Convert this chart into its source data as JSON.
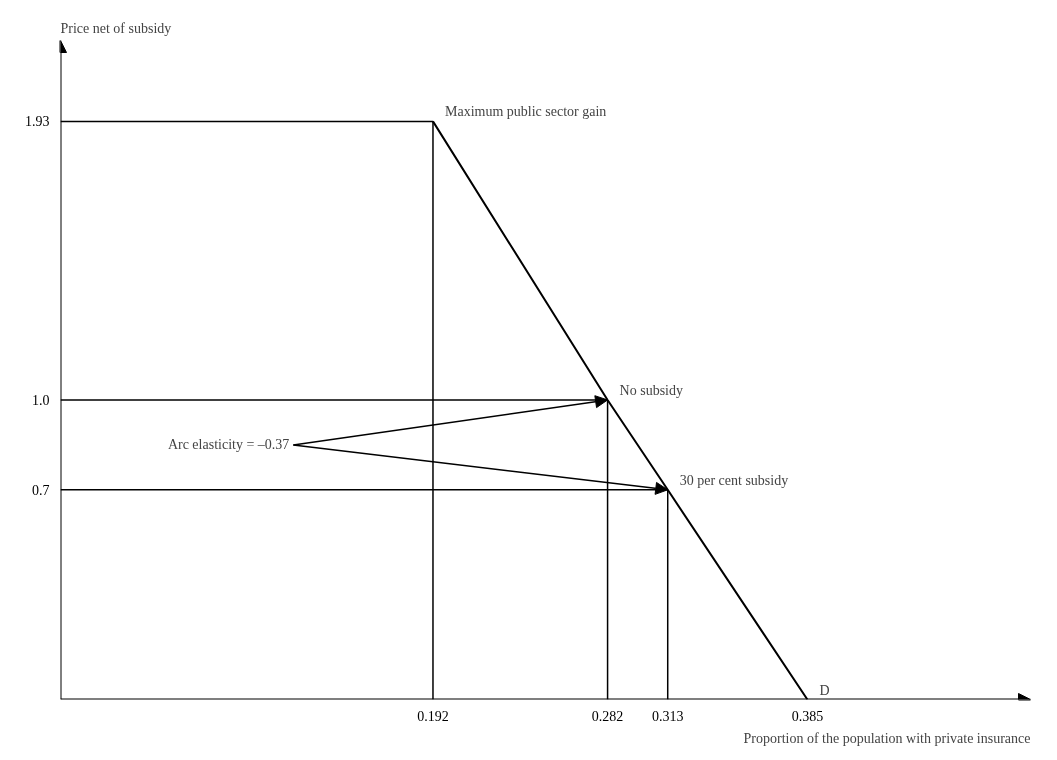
{
  "chart_data": {
    "type": "line",
    "xlabel": "Proportion of the population with private insurance",
    "ylabel": "Price net of subsidy",
    "x": [
      0.192,
      0.282,
      0.313,
      0.385
    ],
    "series": [
      {
        "color": "#000000",
        "values": [
          1.93,
          1.0,
          0.7,
          0
        ]
      }
    ],
    "xlim": [
      0,
      0.5
    ],
    "ylim": [
      0,
      2.2
    ],
    "xticks": [
      0.192,
      0.282,
      0.313,
      0.385
    ],
    "yticks": [
      1.93,
      "1.0",
      0.7
    ],
    "annotations": [
      {
        "text": "Maximum public sector gain",
        "x": 0.192,
        "y": 1.93
      },
      {
        "text": "No subsidy",
        "x": 0.282,
        "y": 1.0
      },
      {
        "text": "30 per cent subsidy",
        "x": 0.313,
        "y": 0.7
      },
      {
        "text": "D",
        "x": 0.385,
        "y": 0
      },
      {
        "text": "Arc elasticity = –0.37",
        "x": 0.282,
        "y": 1.0
      }
    ],
    "marker": "none",
    "line_style": "solid"
  }
}
